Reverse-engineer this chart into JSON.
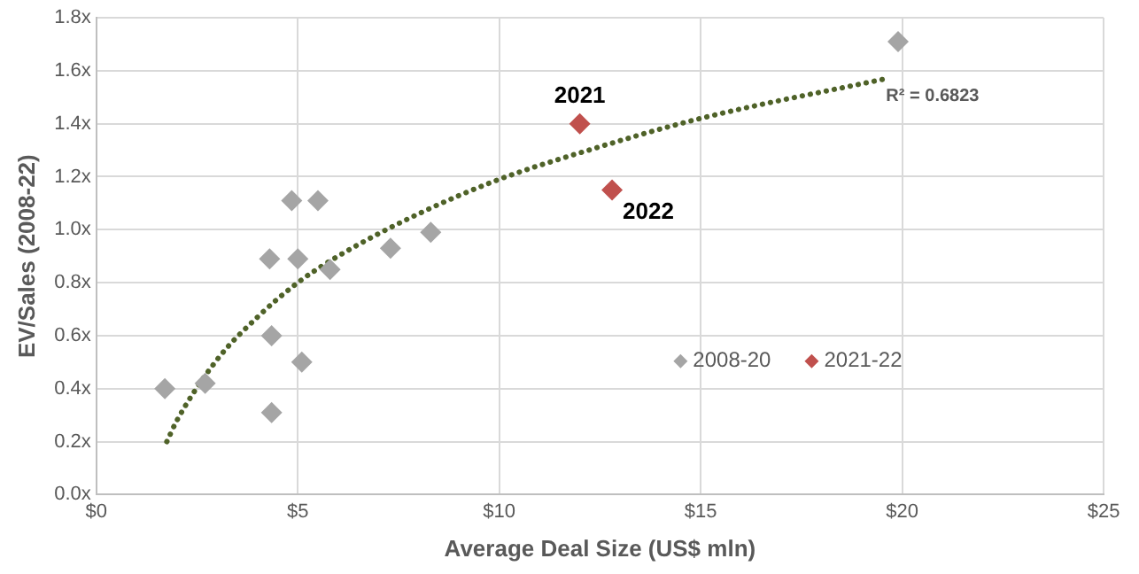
{
  "chart_data": {
    "type": "scatter",
    "xlabel": "Average Deal Size (US$ mln)",
    "ylabel": "EV/Sales (2008-22)",
    "xlim": [
      0,
      25
    ],
    "xticks": [
      {
        "value": 0,
        "label": "$0"
      },
      {
        "value": 5,
        "label": "$5"
      },
      {
        "value": 10,
        "label": "$10"
      },
      {
        "value": 15,
        "label": "$15"
      },
      {
        "value": 20,
        "label": "$20"
      },
      {
        "value": 25,
        "label": "$25"
      }
    ],
    "ylim": [
      0,
      1.8
    ],
    "yticks": [
      {
        "value": 0,
        "label": "0.0x"
      },
      {
        "value": 0.2,
        "label": "0.2x"
      },
      {
        "value": 0.4,
        "label": "0.4x"
      },
      {
        "value": 0.6,
        "label": "0.6x"
      },
      {
        "value": 0.8,
        "label": "0.8x"
      },
      {
        "value": 1.0,
        "label": "1.0x"
      },
      {
        "value": 1.2,
        "label": "1.2x"
      },
      {
        "value": 1.4,
        "label": "1.4x"
      },
      {
        "value": 1.6,
        "label": "1.6x"
      },
      {
        "value": 1.8,
        "label": "1.8x"
      }
    ],
    "grid": true,
    "legend": "bottom right",
    "marker": "diamond",
    "series": [
      {
        "name": "2008-20",
        "color": "#a5a5a5",
        "x": [
          1.7,
          2.7,
          4.3,
          4.35,
          4.35,
          4.85,
          5.0,
          5.1,
          5.5,
          5.8,
          7.3,
          8.3,
          19.9
        ],
        "values": [
          0.4,
          0.42,
          0.89,
          0.6,
          0.31,
          1.11,
          0.89,
          0.5,
          1.11,
          0.85,
          0.93,
          0.99,
          1.71
        ]
      },
      {
        "name": "2021-22",
        "color": "#c0504d",
        "x": [
          12.0,
          12.8
        ],
        "values": [
          1.4,
          1.15
        ]
      },
      {
        "type": "line",
        "color": "#4f6228",
        "line_style": "dotted",
        "marker": "none",
        "x": [
          1.75,
          2,
          3,
          4,
          5,
          6,
          8,
          10,
          12,
          15,
          19.6
        ],
        "values": [
          0.2,
          0.28,
          0.51,
          0.67,
          0.8,
          0.9,
          1.06,
          1.19,
          1.29,
          1.42,
          1.57
        ]
      }
    ],
    "annotations": [
      {
        "text": "2021",
        "x": 12.0,
        "y": 1.4
      },
      {
        "text": "2022",
        "x": 12.8,
        "y": 1.15
      },
      "R² = 0.6823"
    ]
  }
}
